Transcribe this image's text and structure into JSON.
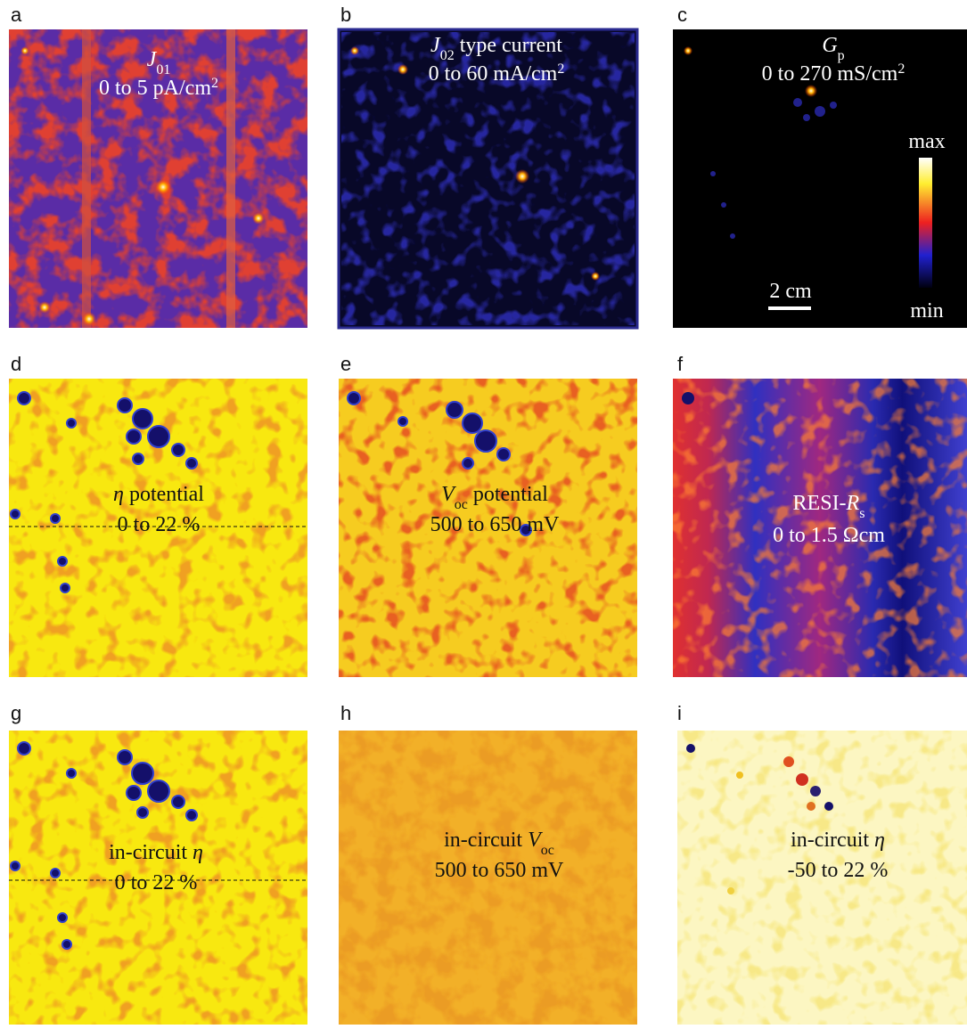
{
  "panels": [
    {
      "label": "a",
      "lines": [
        [
          "J",
          "01"
        ],
        [
          "0 to 5 pA/cm",
          "2"
        ]
      ]
    },
    {
      "label": "b",
      "lines": [
        [
          "J",
          "02",
          " type current"
        ],
        [
          "0 to 60 mA/cm",
          "2"
        ]
      ]
    },
    {
      "label": "c",
      "lines": [
        [
          "G",
          "p"
        ],
        [
          "0 to 270 mS/cm",
          "2"
        ]
      ],
      "colorbar": {
        "max": "max",
        "min": "min"
      },
      "scale_bar": "2 cm"
    },
    {
      "label": "d",
      "lines": [
        [
          "η",
          " potential"
        ],
        [
          "0 to 22 %"
        ]
      ]
    },
    {
      "label": "e",
      "lines": [
        [
          "V",
          "oc",
          " potential"
        ],
        [
          "500 to 650 mV"
        ]
      ]
    },
    {
      "label": "f",
      "lines": [
        [
          "RESI-",
          "R",
          "s"
        ],
        [
          "0 to 1.5 Ωcm"
        ]
      ]
    },
    {
      "label": "g",
      "lines": [
        [
          "in-circuit ",
          "η"
        ],
        [
          "0 to 22 %"
        ]
      ]
    },
    {
      "label": "h",
      "lines": [
        [
          "in-circuit ",
          "V",
          "oc"
        ],
        [
          "500 to 650 mV"
        ]
      ]
    },
    {
      "label": "i",
      "lines": [
        [
          "in-circuit ",
          "η"
        ],
        [
          "-50 to 22 %"
        ]
      ]
    }
  ]
}
